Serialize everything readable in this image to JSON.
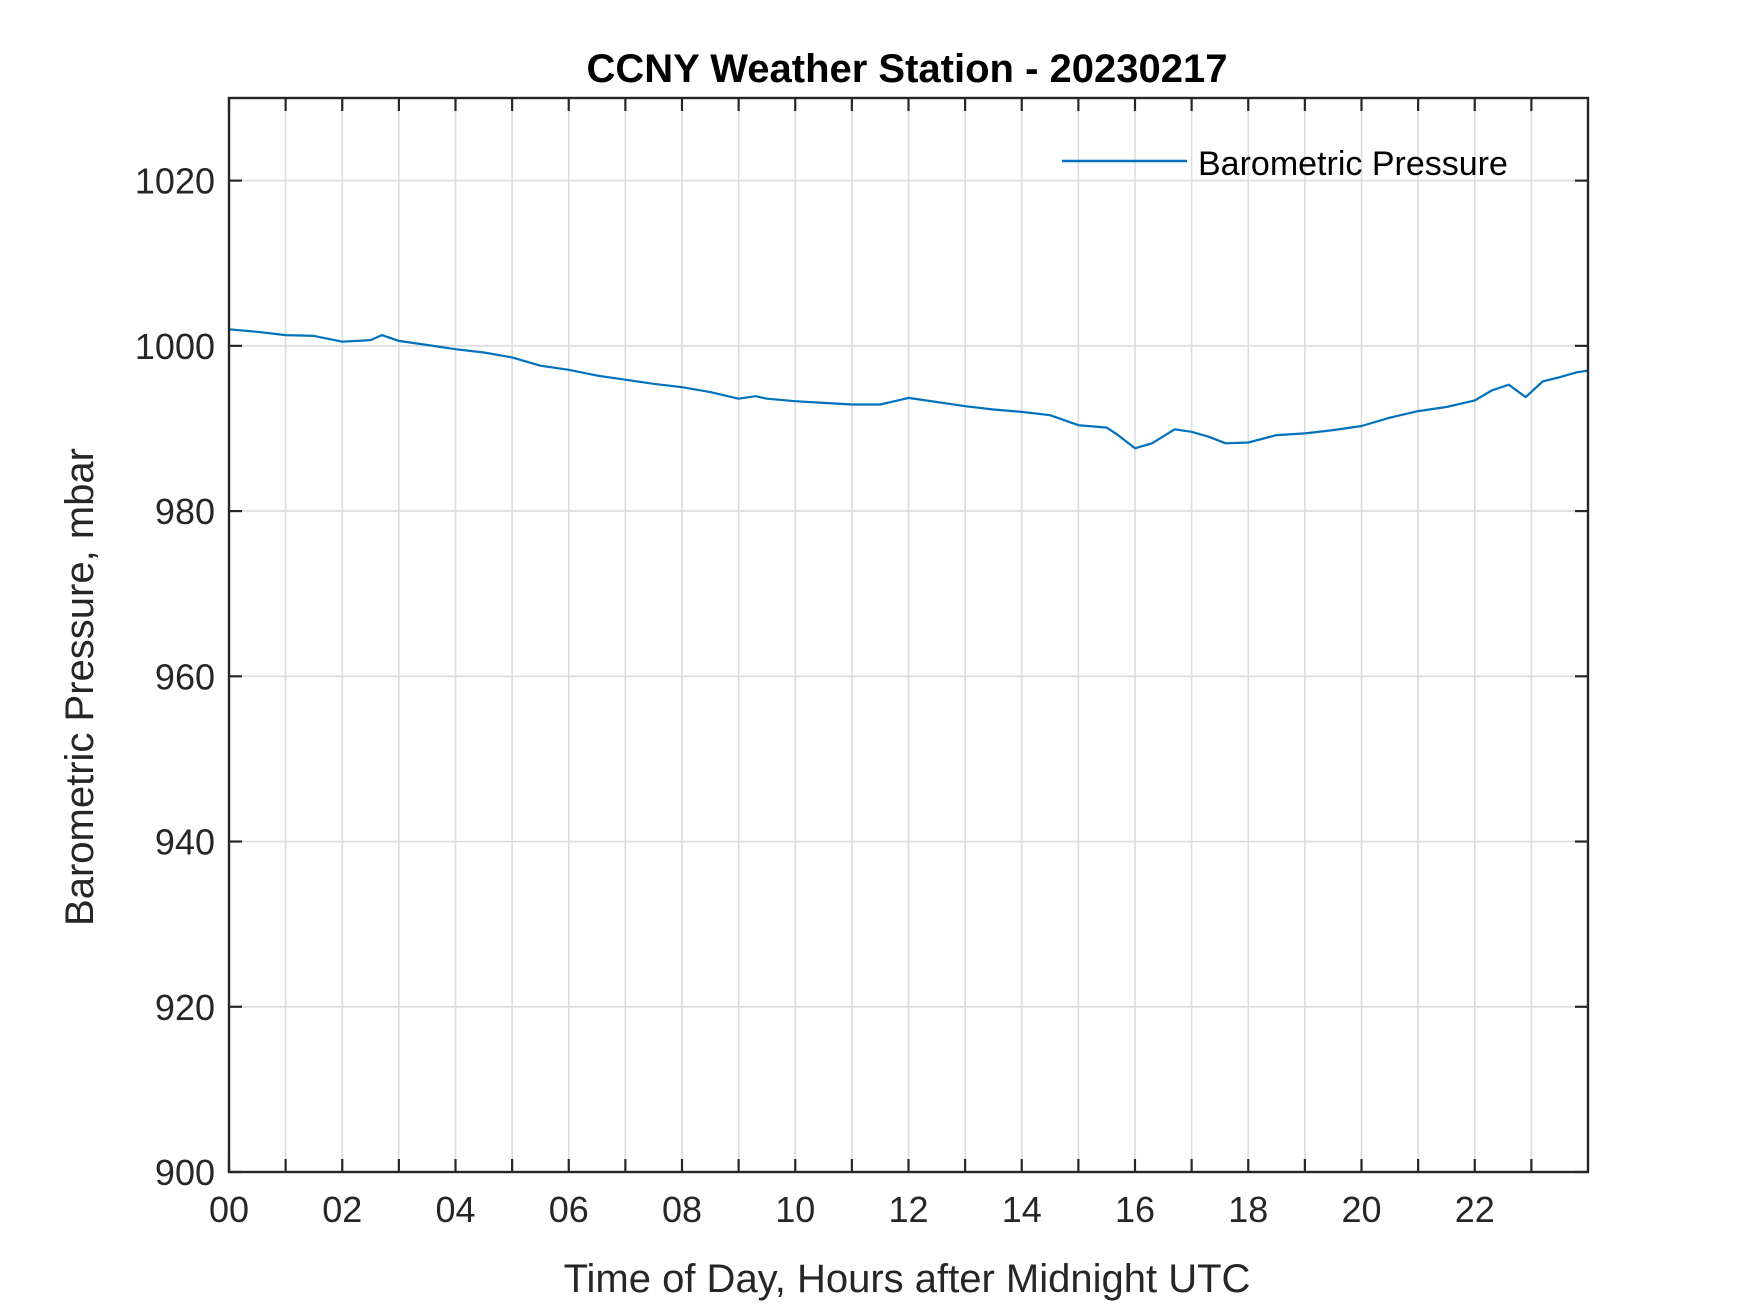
{
  "chart_data": {
    "type": "line",
    "title": "CCNY Weather Station - 20230217",
    "xlabel": "Time of Day, Hours after Midnight UTC",
    "ylabel": "Barometric Pressure, mbar",
    "xlim": [
      0,
      24
    ],
    "ylim": [
      900,
      1030
    ],
    "x_ticks": [
      0,
      2,
      4,
      6,
      8,
      10,
      12,
      14,
      16,
      18,
      20,
      22
    ],
    "x_tick_labels": [
      "00",
      "02",
      "04",
      "06",
      "08",
      "10",
      "12",
      "14",
      "16",
      "18",
      "20",
      "22"
    ],
    "x_grid": [
      0,
      1,
      2,
      3,
      4,
      5,
      6,
      7,
      8,
      9,
      10,
      11,
      12,
      13,
      14,
      15,
      16,
      17,
      18,
      19,
      20,
      21,
      22,
      23
    ],
    "y_ticks": [
      900,
      920,
      940,
      960,
      980,
      1000,
      1020
    ],
    "y_tick_labels": [
      "900",
      "920",
      "940",
      "960",
      "980",
      "1000",
      "1020"
    ],
    "grid": true,
    "legend": {
      "position": "top-right",
      "entries": [
        "Barometric Pressure"
      ]
    },
    "series": [
      {
        "name": "Barometric Pressure",
        "color": "#0072BD",
        "x": [
          0,
          0.5,
          1.0,
          1.5,
          2.0,
          2.5,
          2.7,
          3.0,
          3.5,
          4.0,
          4.5,
          5.0,
          5.5,
          6.0,
          6.5,
          7.0,
          7.5,
          8.0,
          8.5,
          9.0,
          9.3,
          9.5,
          10.0,
          10.5,
          11.0,
          11.5,
          12.0,
          12.5,
          13.0,
          13.5,
          14.0,
          14.5,
          15.0,
          15.5,
          15.7,
          16.0,
          16.3,
          16.7,
          17.0,
          17.3,
          17.6,
          18.0,
          18.5,
          19.0,
          19.5,
          20.0,
          20.5,
          21.0,
          21.5,
          22.0,
          22.3,
          22.6,
          22.9,
          23.2,
          23.5,
          23.8,
          24.0
        ],
        "values": [
          1002,
          1001.7,
          1001.3,
          1001.2,
          1000.5,
          1000.7,
          1001.3,
          1000.6,
          1000.1,
          999.6,
          999.2,
          998.6,
          997.6,
          997.1,
          996.4,
          995.9,
          995.4,
          995.0,
          994.4,
          993.6,
          993.9,
          993.6,
          993.3,
          993.1,
          992.9,
          992.9,
          993.7,
          993.2,
          992.7,
          992.3,
          992.0,
          991.6,
          990.4,
          990.1,
          989.2,
          987.6,
          988.2,
          989.9,
          989.6,
          989.0,
          988.2,
          988.3,
          989.2,
          989.4,
          989.8,
          990.3,
          991.3,
          992.1,
          992.6,
          993.4,
          994.6,
          995.3,
          993.8,
          995.7,
          996.2,
          996.8,
          997.0
        ]
      }
    ]
  }
}
